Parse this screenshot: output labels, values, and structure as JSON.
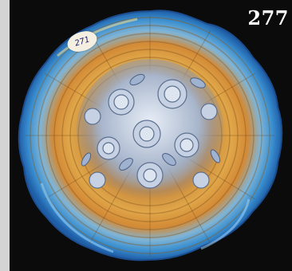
{
  "photo": {
    "subject": "carnival-glass-plate",
    "lot_number": "277",
    "sticker_text": "271"
  },
  "colors": {
    "background": "#0b0b0b",
    "rim_blue": "#3a8fd0",
    "iridescent_gold": "#d89a3a",
    "center_silver": "#c9d4e6"
  }
}
